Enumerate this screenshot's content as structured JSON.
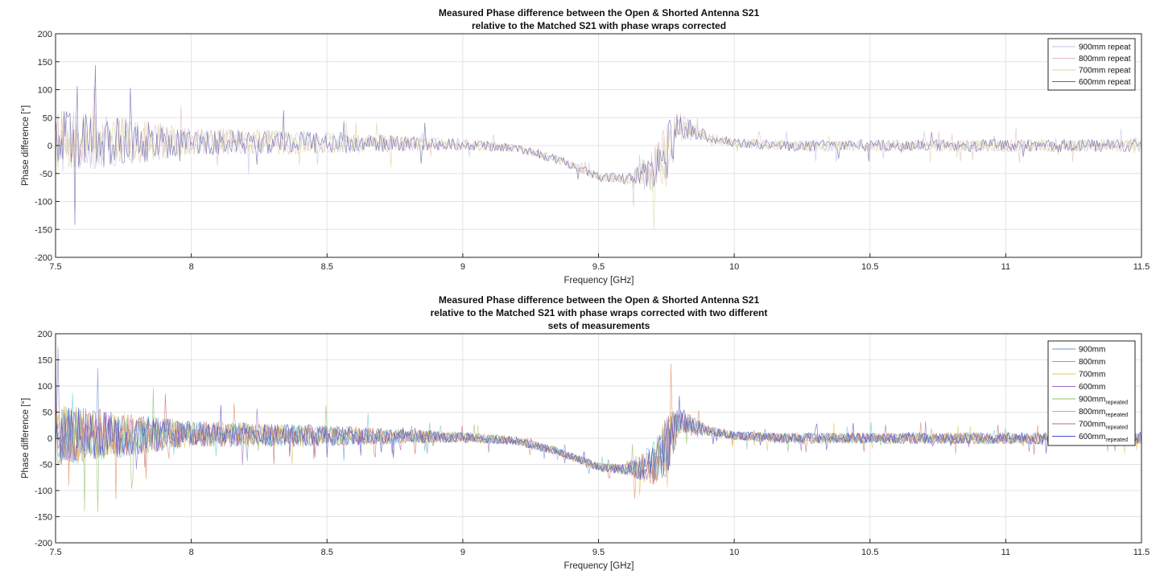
{
  "chart_data": [
    {
      "type": "line",
      "title": [
        "Measured Phase difference between the Open & Shorted Antenna S21",
        "relative to the Matched S21 with phase wraps corrected"
      ],
      "xlabel": "Frequency [GHz]",
      "ylabel": "Phase difference [°]",
      "xlim": [
        7.5,
        11.5
      ],
      "ylim": [
        -200,
        200
      ],
      "xticks": [
        7.5,
        8,
        8.5,
        9,
        9.5,
        10,
        10.5,
        11,
        11.5
      ],
      "xtick_labels": [
        "7.5",
        "8",
        "8.5",
        "9",
        "9.5",
        "10",
        "10.5",
        "11",
        "11.5"
      ],
      "yticks": [
        -200,
        -150,
        -100,
        -50,
        0,
        50,
        100,
        150,
        200
      ],
      "ytick_labels": [
        "-200",
        "-150",
        "-100",
        "-50",
        "0",
        "50",
        "100",
        "150",
        "200"
      ],
      "grid": true,
      "legend_position": "top-right",
      "series": [
        {
          "name": "900mm repeat",
          "color": "#b9c3e6"
        },
        {
          "name": "800mm repeat",
          "color": "#e2b9b9"
        },
        {
          "name": "700mm repeat",
          "color": "#d8d49a"
        },
        {
          "name": "600mm repeat",
          "color": "#6a5fa8"
        }
      ],
      "trend": {
        "x": [
          7.5,
          8.0,
          8.5,
          9.0,
          9.2,
          9.35,
          9.5,
          9.6,
          9.7,
          9.75,
          9.8,
          9.9,
          10.0,
          10.2,
          11.5
        ],
        "y": [
          5,
          8,
          5,
          2,
          -5,
          -25,
          -55,
          -60,
          -50,
          -15,
          35,
          15,
          5,
          0,
          0
        ],
        "noise_amplitude": [
          60,
          25,
          20,
          10,
          8,
          8,
          8,
          10,
          40,
          60,
          25,
          10,
          8,
          10,
          12
        ]
      }
    },
    {
      "type": "line",
      "title": [
        "Measured Phase difference between the Open & Shorted Antenna S21",
        "relative to the Matched S21 with phase wraps corrected with two different",
        "sets of measurements"
      ],
      "xlabel": "Frequency [GHz]",
      "ylabel": "Phase difference [°]",
      "xlim": [
        7.5,
        11.5
      ],
      "ylim": [
        -200,
        200
      ],
      "xticks": [
        7.5,
        8,
        8.5,
        9,
        9.5,
        10,
        10.5,
        11,
        11.5
      ],
      "xtick_labels": [
        "7.5",
        "8",
        "8.5",
        "9",
        "9.5",
        "10",
        "10.5",
        "11",
        "11.5"
      ],
      "yticks": [
        -200,
        -150,
        -100,
        -50,
        0,
        50,
        100,
        150,
        200
      ],
      "ytick_labels": [
        "-200",
        "-150",
        "-100",
        "-50",
        "0",
        "50",
        "100",
        "150",
        "200"
      ],
      "grid": true,
      "legend_position": "top-right",
      "series": [
        {
          "name": "900mm",
          "color": "#6b8fd6"
        },
        {
          "name": "800mm",
          "color": "#e08a5a"
        },
        {
          "name": "700mm",
          "color": "#e6c45a"
        },
        {
          "name": "600mm",
          "color": "#9a6fc0"
        },
        {
          "name": "900mm",
          "sub": "repeated",
          "color": "#8fbf6a"
        },
        {
          "name": "800mm",
          "sub": "repeated",
          "color": "#6fc6d8"
        },
        {
          "name": "700mm",
          "sub": "repeated",
          "color": "#c06a6a"
        },
        {
          "name": "600mm",
          "sub": "repeated",
          "color": "#4a4ad0"
        }
      ],
      "trend": {
        "x": [
          7.5,
          8.0,
          8.5,
          9.0,
          9.2,
          9.35,
          9.5,
          9.6,
          9.7,
          9.75,
          9.8,
          9.9,
          10.0,
          10.2,
          11.5
        ],
        "y": [
          5,
          8,
          5,
          2,
          -5,
          -25,
          -55,
          -60,
          -50,
          -15,
          35,
          15,
          5,
          0,
          0
        ],
        "noise_amplitude": [
          60,
          25,
          20,
          10,
          8,
          8,
          8,
          10,
          40,
          60,
          25,
          10,
          8,
          10,
          12
        ]
      }
    }
  ]
}
